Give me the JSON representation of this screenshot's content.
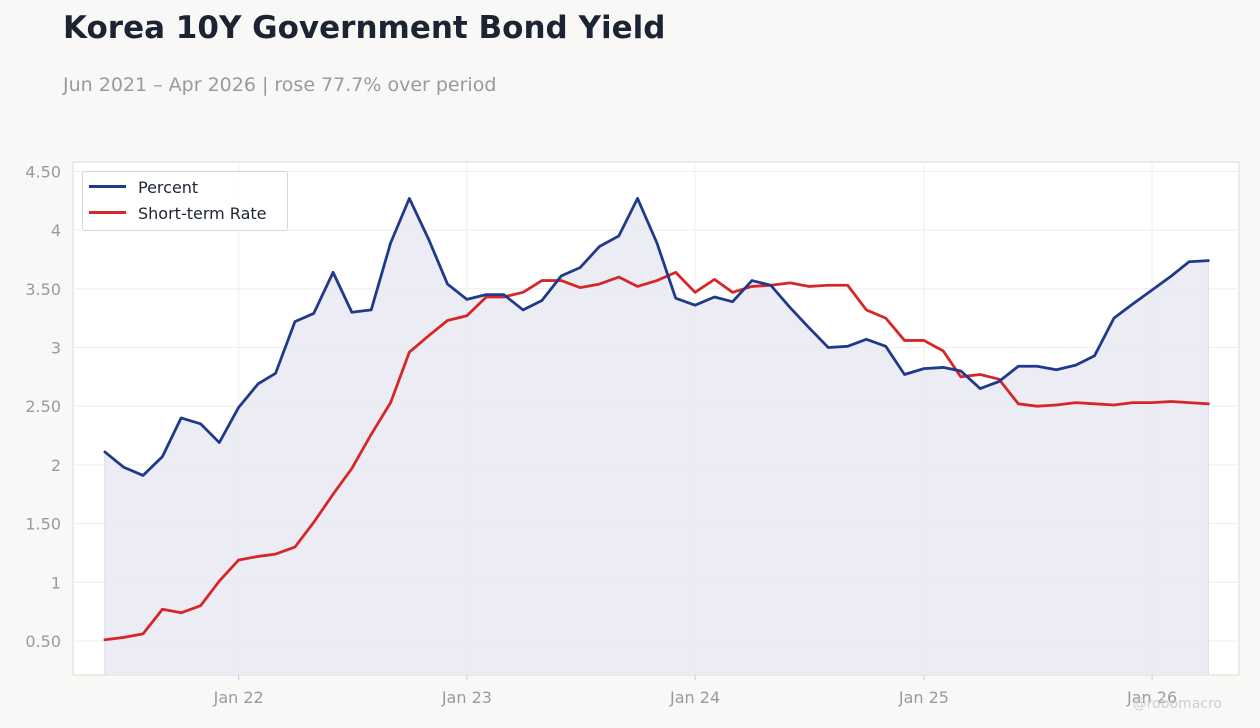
{
  "header": {
    "title": "Korea 10Y Government Bond Yield",
    "subtitle": "Jun 2021 – Apr 2026 | rose 77.7% over period"
  },
  "watermark": "@robomacro",
  "colors": {
    "percent": "#1f3a8a",
    "short_rate": "#d62728",
    "area_fill": "#e9e9f3"
  },
  "chart_data": {
    "type": "line",
    "x_axis": {
      "type": "date",
      "range": [
        "2021-04-11",
        "2026-05-20"
      ],
      "tick_labels": [
        {
          "date": "2022-01-01",
          "label": "Jan 22"
        },
        {
          "date": "2023-01-01",
          "label": "Jan 23"
        },
        {
          "date": "2024-01-01",
          "label": "Jan 24"
        },
        {
          "date": "2025-01-01",
          "label": "Jan 25"
        },
        {
          "date": "2026-01-01",
          "label": "Jan 26"
        }
      ]
    },
    "y_axis": {
      "range": [
        0.21,
        4.58
      ],
      "ticks": [
        0.5,
        1,
        1.5,
        2,
        2.5,
        3,
        3.5,
        4,
        4.5
      ],
      "tick_labels": [
        "0.50",
        "1",
        "1.50",
        "2",
        "2.50",
        "3",
        "3.50",
        "4",
        "4.50"
      ]
    },
    "grid": true,
    "legend_position": "top-left",
    "dates": [
      "2021-06-01",
      "2021-07-01",
      "2021-08-01",
      "2021-09-01",
      "2021-10-01",
      "2021-11-01",
      "2021-12-01",
      "2022-01-01",
      "2022-02-01",
      "2022-03-01",
      "2022-04-01",
      "2022-05-01",
      "2022-06-01",
      "2022-07-01",
      "2022-08-01",
      "2022-09-01",
      "2022-10-01",
      "2022-11-01",
      "2022-12-01",
      "2023-01-01",
      "2023-02-01",
      "2023-03-01",
      "2023-04-01",
      "2023-05-01",
      "2023-06-01",
      "2023-07-01",
      "2023-08-01",
      "2023-09-01",
      "2023-10-01",
      "2023-11-01",
      "2023-12-01",
      "2024-01-01",
      "2024-02-01",
      "2024-03-01",
      "2024-04-01",
      "2024-05-01",
      "2024-06-01",
      "2024-07-01",
      "2024-08-01",
      "2024-09-01",
      "2024-10-01",
      "2024-11-01",
      "2024-12-01",
      "2025-01-01",
      "2025-02-01",
      "2025-03-01",
      "2025-04-01",
      "2025-05-01",
      "2025-06-01",
      "2025-07-01",
      "2025-08-01",
      "2025-09-01",
      "2025-10-01",
      "2025-11-01",
      "2025-12-01",
      "2026-01-01",
      "2026-02-01",
      "2026-03-01",
      "2026-04-01"
    ],
    "series": [
      {
        "name": "Percent",
        "filled": true,
        "values": [
          2.11,
          1.98,
          1.91,
          2.07,
          2.4,
          2.35,
          2.19,
          2.49,
          2.69,
          2.78,
          3.22,
          3.29,
          3.64,
          3.3,
          3.32,
          3.89,
          4.27,
          3.92,
          3.54,
          3.41,
          3.45,
          3.45,
          3.32,
          3.4,
          3.61,
          3.68,
          3.86,
          3.95,
          4.27,
          3.89,
          3.42,
          3.36,
          3.43,
          3.39,
          3.57,
          3.53,
          3.34,
          3.17,
          3.0,
          3.01,
          3.07,
          3.01,
          2.77,
          2.82,
          2.83,
          2.8,
          2.65,
          2.71,
          2.84,
          2.84,
          2.81,
          2.85,
          2.93,
          3.25,
          3.37,
          3.49,
          3.61,
          3.73,
          3.74
        ]
      },
      {
        "name": "Short-term Rate",
        "filled": false,
        "values": [
          0.51,
          0.53,
          0.56,
          0.77,
          0.74,
          0.8,
          1.01,
          1.19,
          1.22,
          1.24,
          1.3,
          1.51,
          1.75,
          1.97,
          2.26,
          2.53,
          2.96,
          3.1,
          3.23,
          3.27,
          3.43,
          3.43,
          3.47,
          3.57,
          3.57,
          3.51,
          3.54,
          3.6,
          3.52,
          3.57,
          3.64,
          3.47,
          3.58,
          3.47,
          3.52,
          3.53,
          3.55,
          3.52,
          3.53,
          3.53,
          3.32,
          3.25,
          3.06,
          3.06,
          2.97,
          2.75,
          2.77,
          2.73,
          2.52,
          2.5,
          2.51,
          2.53,
          2.52,
          2.51,
          2.53,
          2.53,
          2.54,
          2.53,
          2.52
        ]
      }
    ]
  }
}
